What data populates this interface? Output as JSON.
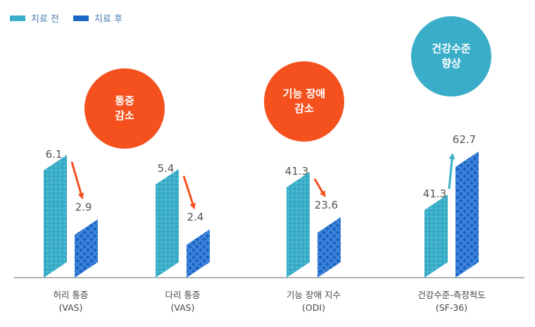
{
  "chart_data": {
    "type": "bar",
    "title": "",
    "xlabel": "",
    "ylabel": "",
    "categories": [
      {
        "line1": "허리 통증",
        "line2": "(VAS)"
      },
      {
        "line1": "다리 통증",
        "line2": "(VAS)"
      },
      {
        "line1": "기능 장애 지수",
        "line2": "(ODI)"
      },
      {
        "line1": "건강수준-측정척도",
        "line2": "(SF-36)"
      }
    ],
    "series": [
      {
        "name": "치료 전",
        "color": "#3aaec9",
        "values": [
          6.1,
          5.4,
          41.3,
          41.3
        ],
        "labels": [
          "6.1",
          "5.4",
          "41.3",
          "41.3"
        ]
      },
      {
        "name": "치료 후",
        "color": "#1a66c7",
        "values": [
          2.9,
          2.4,
          23.6,
          62.7
        ],
        "labels": [
          "2.9",
          "2.4",
          "23.6",
          "62.7"
        ]
      }
    ],
    "panel_max": [
      7.0,
      7.0,
      55.0,
      70.0
    ],
    "annotations": [
      {
        "line1": "통증",
        "line2": "감소",
        "color": "#f4511e"
      },
      {
        "line1": "기능 장애",
        "line2": "감소",
        "color": "#f4511e"
      },
      {
        "line1": "건강수준",
        "line2": "향상",
        "color": "#3aaec9"
      }
    ],
    "arrow_colors": {
      "decrease": "#f4511e",
      "increase": "#3aaec9"
    }
  }
}
